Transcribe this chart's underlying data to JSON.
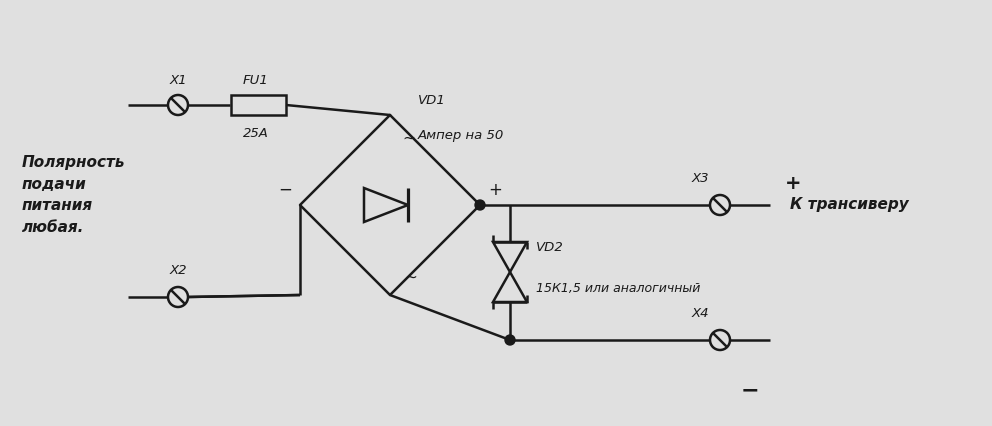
{
  "bg_color": "#e0e0e0",
  "line_color": "#1a1a1a",
  "line_width": 1.8,
  "text_color": "#1a1a1a",
  "left_text": "Полярность\nподачи\nпитания\nлюбая.",
  "x1_label": "X1",
  "x2_label": "X2",
  "x3_label": "X3",
  "x4_label": "X4",
  "fu1_label": "FU1",
  "fu1_val": "25А",
  "vd1_label": "VD1",
  "vd1_val": "Ампер на 50",
  "vd2_label": "VD2",
  "vd2_val": "15К1,5 или аналогичный",
  "transceiver_label": "К трансиверу",
  "plus_label": "+",
  "minus_label": "−",
  "tilde": "~"
}
